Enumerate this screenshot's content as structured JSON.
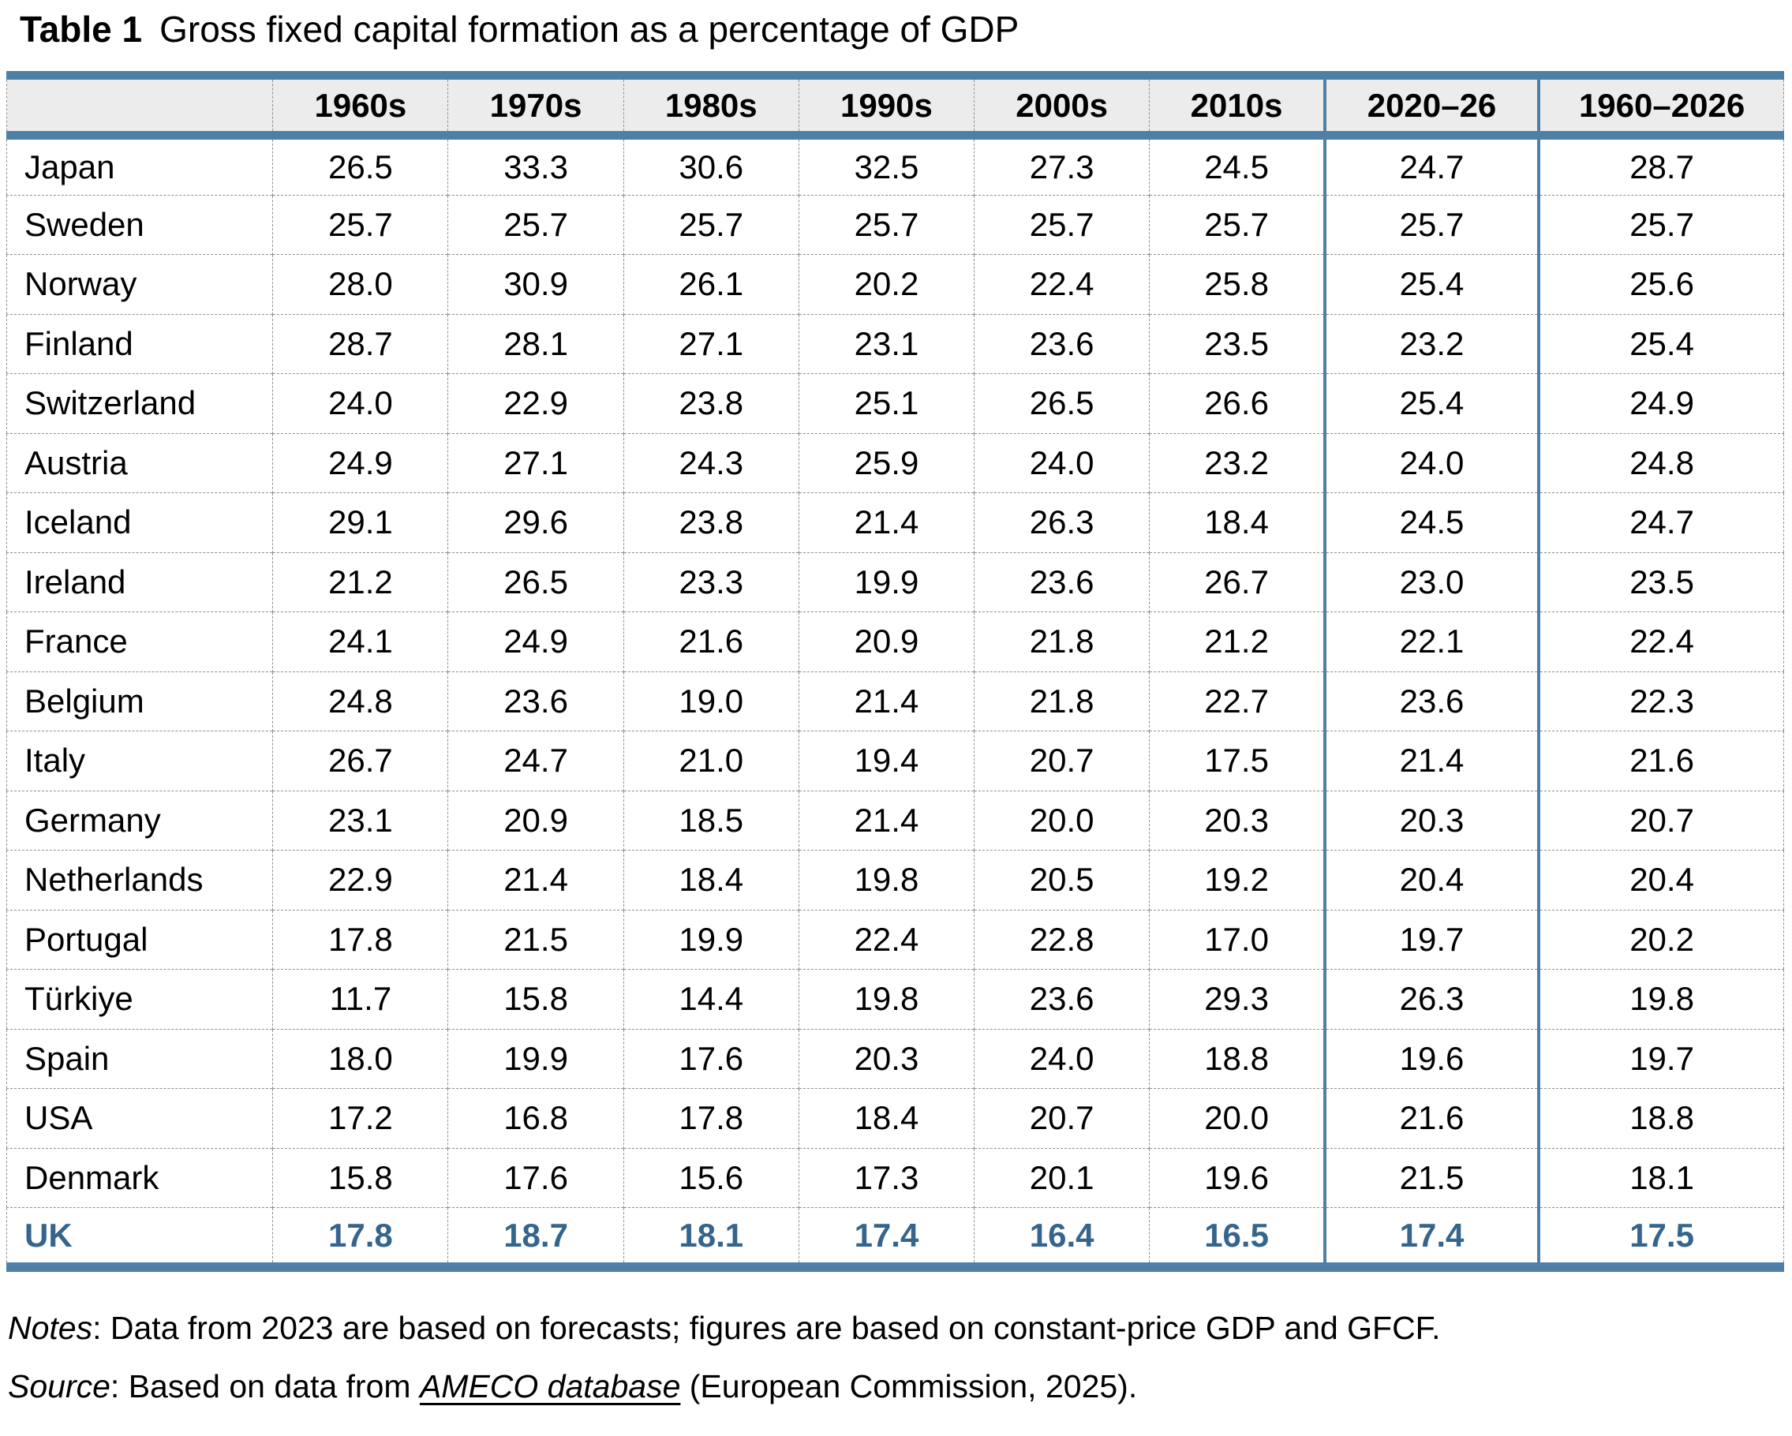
{
  "title": {
    "label": "Table 1",
    "text": "Gross fixed capital formation as a percentage of GDP"
  },
  "colors": {
    "accent": "#4e80a6",
    "highlight_text": "#35648c",
    "header_bg": "#ececec"
  },
  "table": {
    "columns": [
      "1960s",
      "1970s",
      "1980s",
      "1990s",
      "2000s",
      "2010s",
      "2020–26",
      "1960–2026"
    ],
    "rows": [
      {
        "country": "Japan",
        "values": [
          "26.5",
          "33.3",
          "30.6",
          "32.5",
          "27.3",
          "24.5",
          "24.7",
          "28.7"
        ],
        "highlight": false
      },
      {
        "country": "Sweden",
        "values": [
          "25.7",
          "25.7",
          "25.7",
          "25.7",
          "25.7",
          "25.7",
          "25.7",
          "25.7"
        ],
        "highlight": false
      },
      {
        "country": "Norway",
        "values": [
          "28.0",
          "30.9",
          "26.1",
          "20.2",
          "22.4",
          "25.8",
          "25.4",
          "25.6"
        ],
        "highlight": false
      },
      {
        "country": "Finland",
        "values": [
          "28.7",
          "28.1",
          "27.1",
          "23.1",
          "23.6",
          "23.5",
          "23.2",
          "25.4"
        ],
        "highlight": false
      },
      {
        "country": "Switzerland",
        "values": [
          "24.0",
          "22.9",
          "23.8",
          "25.1",
          "26.5",
          "26.6",
          "25.4",
          "24.9"
        ],
        "highlight": false
      },
      {
        "country": "Austria",
        "values": [
          "24.9",
          "27.1",
          "24.3",
          "25.9",
          "24.0",
          "23.2",
          "24.0",
          "24.8"
        ],
        "highlight": false
      },
      {
        "country": "Iceland",
        "values": [
          "29.1",
          "29.6",
          "23.8",
          "21.4",
          "26.3",
          "18.4",
          "24.5",
          "24.7"
        ],
        "highlight": false
      },
      {
        "country": "Ireland",
        "values": [
          "21.2",
          "26.5",
          "23.3",
          "19.9",
          "23.6",
          "26.7",
          "23.0",
          "23.5"
        ],
        "highlight": false
      },
      {
        "country": "France",
        "values": [
          "24.1",
          "24.9",
          "21.6",
          "20.9",
          "21.8",
          "21.2",
          "22.1",
          "22.4"
        ],
        "highlight": false
      },
      {
        "country": "Belgium",
        "values": [
          "24.8",
          "23.6",
          "19.0",
          "21.4",
          "21.8",
          "22.7",
          "23.6",
          "22.3"
        ],
        "highlight": false
      },
      {
        "country": "Italy",
        "values": [
          "26.7",
          "24.7",
          "21.0",
          "19.4",
          "20.7",
          "17.5",
          "21.4",
          "21.6"
        ],
        "highlight": false
      },
      {
        "country": "Germany",
        "values": [
          "23.1",
          "20.9",
          "18.5",
          "21.4",
          "20.0",
          "20.3",
          "20.3",
          "20.7"
        ],
        "highlight": false
      },
      {
        "country": "Netherlands",
        "values": [
          "22.9",
          "21.4",
          "18.4",
          "19.8",
          "20.5",
          "19.2",
          "20.4",
          "20.4"
        ],
        "highlight": false
      },
      {
        "country": "Portugal",
        "values": [
          "17.8",
          "21.5",
          "19.9",
          "22.4",
          "22.8",
          "17.0",
          "19.7",
          "20.2"
        ],
        "highlight": false
      },
      {
        "country": "Türkiye",
        "values": [
          "11.7",
          "15.8",
          "14.4",
          "19.8",
          "23.6",
          "29.3",
          "26.3",
          "19.8"
        ],
        "highlight": false
      },
      {
        "country": "Spain",
        "values": [
          "18.0",
          "19.9",
          "17.6",
          "20.3",
          "24.0",
          "18.8",
          "19.6",
          "19.7"
        ],
        "highlight": false
      },
      {
        "country": "USA",
        "values": [
          "17.2",
          "16.8",
          "17.8",
          "18.4",
          "20.7",
          "20.0",
          "21.6",
          "18.8"
        ],
        "highlight": false
      },
      {
        "country": "Denmark",
        "values": [
          "15.8",
          "17.6",
          "15.6",
          "17.3",
          "20.1",
          "19.6",
          "21.5",
          "18.1"
        ],
        "highlight": false
      },
      {
        "country": "UK",
        "values": [
          "17.8",
          "18.7",
          "18.1",
          "17.4",
          "16.4",
          "16.5",
          "17.4",
          "17.5"
        ],
        "highlight": true
      }
    ]
  },
  "notes": {
    "notes_label": "Notes",
    "notes_rest": ": Data from 2023 are based on forecasts; figures are based on constant-price GDP and GFCF.",
    "source_label": "Source",
    "source_before_link": ": Based on data from ",
    "source_link": "AMECO database",
    "source_after_link": " (European Commission, 2025)."
  }
}
